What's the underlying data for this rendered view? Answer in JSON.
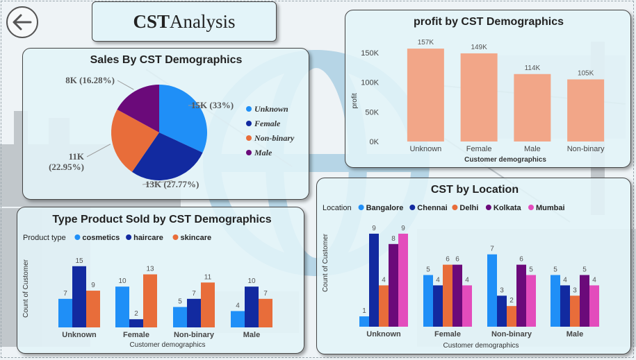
{
  "page": {
    "title_bold": "CST",
    "title_rest": " Analysis"
  },
  "colors": {
    "profit_bar": "#f2a688",
    "cosmetics": "#1f8ff7",
    "haircare": "#122aa0",
    "skincare": "#e86d3a",
    "bangalore": "#1f8ff7",
    "chennai": "#122aa0",
    "delhi": "#e86d3a",
    "kolkata": "#6b0a7a",
    "mumbai": "#e34cbc",
    "unknown": "#1f8ff7",
    "female": "#122aa0",
    "non_binary": "#e86d3a",
    "male": "#6b0a7a"
  },
  "chart_data": [
    {
      "id": "sales",
      "type": "pie",
      "title": "Sales By CST Demographics",
      "categories": [
        "Unknown",
        "Female",
        "Non-binary",
        "Male"
      ],
      "values": [
        15,
        13,
        11,
        8
      ],
      "labels": [
        "15K (33%)",
        "13K (27.77%)",
        "11K (22.95%)",
        "8K (16.28%)"
      ],
      "legend": "right"
    },
    {
      "id": "profit",
      "type": "bar",
      "title": "profit by CST Demographics",
      "categories": [
        "Unknown",
        "Female",
        "Male",
        "Non-binary"
      ],
      "values": [
        157,
        149,
        114,
        105
      ],
      "data_labels": [
        "157K",
        "149K",
        "114K",
        "105K"
      ],
      "ytick_labels": [
        "0K",
        "50K",
        "100K",
        "150K"
      ],
      "yticks": [
        0,
        50,
        100,
        150
      ],
      "ylim": [
        0,
        170
      ],
      "xlabel": "Customer demographics",
      "ylabel": "profit"
    },
    {
      "id": "type",
      "type": "bar",
      "title": "Type Product Sold by CST Demographics",
      "legend_title": "Product type",
      "categories": [
        "Unknown",
        "Female",
        "Non-binary",
        "Male"
      ],
      "series": [
        {
          "name": "cosmetics",
          "values": [
            7,
            10,
            5,
            4
          ]
        },
        {
          "name": "haircare",
          "values": [
            15,
            2,
            7,
            10
          ]
        },
        {
          "name": "skincare",
          "values": [
            9,
            13,
            11,
            7
          ]
        }
      ],
      "xlabel": "Customer demographics",
      "ylabel": "Count of Customer",
      "ylim": [
        0,
        17
      ]
    },
    {
      "id": "location",
      "type": "bar",
      "title": "CST by Location",
      "legend_title": "Location",
      "categories": [
        "Unknown",
        "Female",
        "Non-binary",
        "Male"
      ],
      "series": [
        {
          "name": "Bangalore",
          "values": [
            1,
            5,
            7,
            5
          ]
        },
        {
          "name": "Chennai",
          "values": [
            9,
            4,
            3,
            4
          ]
        },
        {
          "name": "Delhi",
          "values": [
            4,
            6,
            2,
            3
          ]
        },
        {
          "name": "Kolkata",
          "values": [
            8,
            6,
            6,
            5
          ]
        },
        {
          "name": "Mumbai",
          "values": [
            9,
            4,
            5,
            4
          ]
        }
      ],
      "xlabel": "Customer demographics",
      "ylabel": "Count of Customer",
      "ylim": [
        0,
        10
      ]
    }
  ]
}
